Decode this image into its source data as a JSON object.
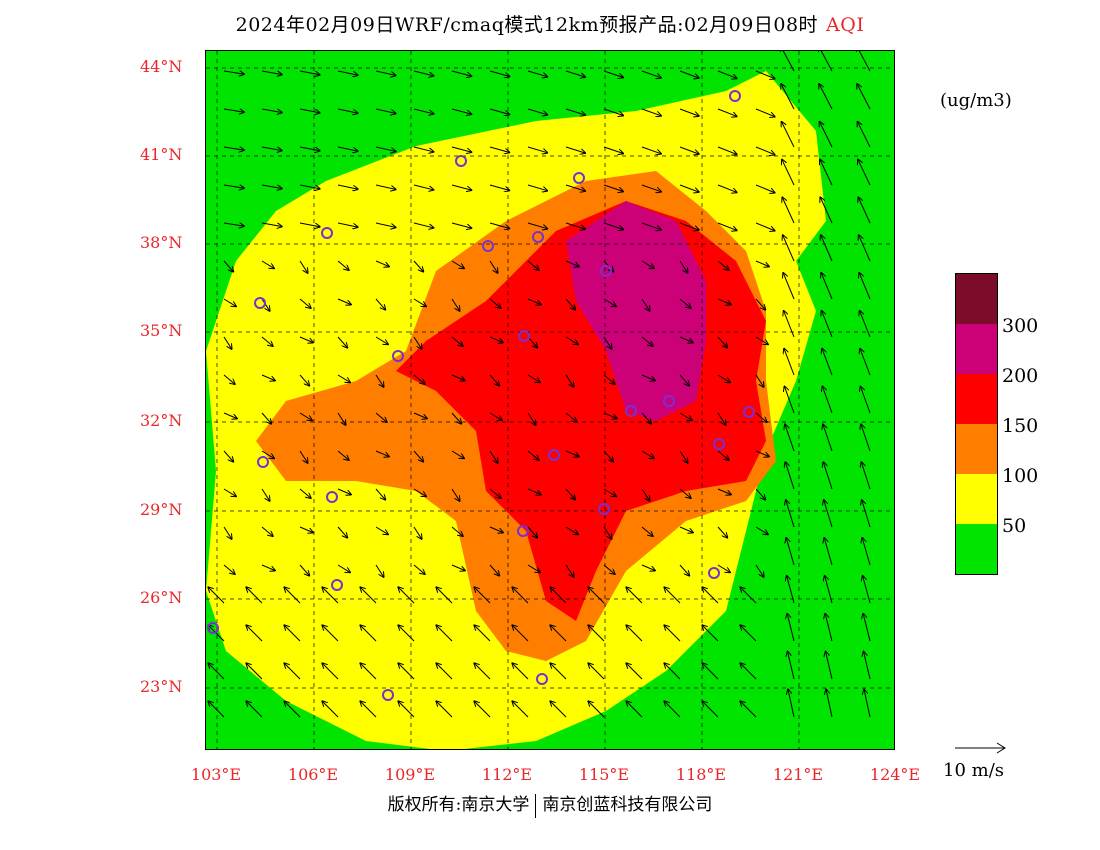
{
  "title": {
    "text": "2024年02月09日WRF/cmaq模式12km预报产品:02月09日08时",
    "variable": "AQI"
  },
  "axes": {
    "lat_labels": [
      "44°N",
      "41°N",
      "38°N",
      "35°N",
      "32°N",
      "29°N",
      "26°N",
      "23°N"
    ],
    "lon_labels": [
      "103°E",
      "106°E",
      "109°E",
      "112°E",
      "115°E",
      "118°E",
      "121°E",
      "124°E"
    ]
  },
  "legend": {
    "unit": "(ug/m3)",
    "labels": [
      "300",
      "200",
      "150",
      "100",
      "50"
    ],
    "colors": [
      "#7b0c2a",
      "#cc0077",
      "#ff0000",
      "#ff7e00",
      "#ffff00",
      "#00e400"
    ]
  },
  "wind_reference": {
    "label": "10 m/s"
  },
  "copyright": {
    "left": "版权所有:南京大学",
    "right": "南京创蓝科技有限公司"
  },
  "colors": {
    "good": "#00e400",
    "moderate": "#ffff00",
    "usg": "#ff7e00",
    "unhealthy": "#ff0000",
    "very_unhealthy": "#cc0077",
    "hazardous": "#7b0c2a",
    "axis_text": "#e8262b",
    "marker": "#7b2fd0"
  }
}
